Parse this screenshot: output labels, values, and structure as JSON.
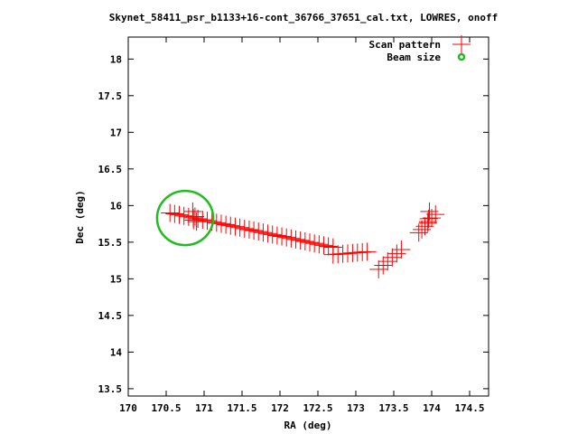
{
  "chart_data": {
    "type": "scatter",
    "title": "Skynet_58411_psr_b1133+16-cont_36766_37651_cal.txt, LOWRES, onoff",
    "xlabel": "RA (deg)",
    "ylabel": "Dec (deg)",
    "xlim": [
      170,
      174.75
    ],
    "ylim": [
      13.4,
      18.3
    ],
    "x_ticks": [
      170,
      170.5,
      171,
      171.5,
      172,
      172.5,
      173,
      173.5,
      174,
      174.5
    ],
    "y_ticks": [
      13.5,
      14,
      14.5,
      15,
      15.5,
      16,
      16.5,
      17,
      17.5,
      18
    ],
    "x_tick_labels": [
      "170",
      "170.5",
      "171",
      "171.5",
      "172",
      "172.5",
      "173",
      "173.5",
      "174",
      "174.5"
    ],
    "y_tick_labels": [
      "13.5",
      "14",
      "14.5",
      "15",
      "15.5",
      "16",
      "16.5",
      "17",
      "17.5",
      "18"
    ],
    "legend_position": "top-right",
    "series": [
      {
        "name": "Scan pattern",
        "color": "#ff0000",
        "marker": "plus",
        "segments": [
          {
            "x_start": 170.55,
            "x_end": 172.7,
            "y_start": 15.9,
            "y_end": 15.43,
            "points": 36
          },
          {
            "x_start": 172.7,
            "x_end": 173.15,
            "y_start": 15.33,
            "y_end": 15.37,
            "points": 8
          },
          {
            "x_start": 173.3,
            "x_end": 173.6,
            "y_start": 15.13,
            "y_end": 15.4,
            "points": 6
          },
          {
            "x_start": 173.83,
            "x_end": 173.95,
            "y_start": 15.63,
            "y_end": 15.76,
            "points": 4
          },
          {
            "x_start": 173.95,
            "x_end": 174.05,
            "y_start": 15.78,
            "y_end": 15.88,
            "points": 3
          }
        ],
        "extra_points": [
          [
            170.85,
            15.92
          ],
          [
            170.88,
            15.85
          ],
          [
            170.86,
            15.8
          ],
          [
            170.9,
            15.78
          ],
          [
            173.96,
            15.82
          ],
          [
            173.97,
            15.92
          ]
        ]
      },
      {
        "name": "Beam size",
        "color": "#00aa00",
        "marker": "circle",
        "center": [
          170.75,
          15.83
        ],
        "radius_deg": 0.37
      }
    ]
  }
}
